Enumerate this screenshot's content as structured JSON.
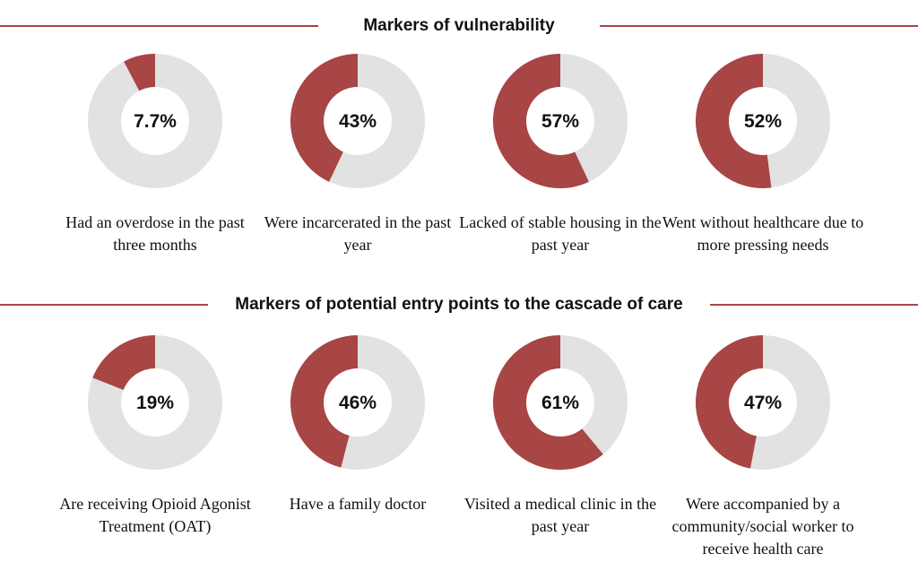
{
  "colors": {
    "accent": "#a84545",
    "track": "#e2e2e2",
    "hole": "#ffffff"
  },
  "chart_data": [
    {
      "type": "pie",
      "title": "Markers of vulnerability",
      "items": [
        {
          "value": 7.7,
          "label": "7.7%",
          "caption": "Had an overdose in the past three months"
        },
        {
          "value": 43,
          "label": "43%",
          "caption": "Were incarcerated in the past year"
        },
        {
          "value": 57,
          "label": "57%",
          "caption": "Lacked of stable housing in the past year"
        },
        {
          "value": 52,
          "label": "52%",
          "caption": "Went without healthcare due to more pressing needs"
        }
      ]
    },
    {
      "type": "pie",
      "title": "Markers of potential entry points to the cascade of care",
      "items": [
        {
          "value": 19,
          "label": "19%",
          "caption": "Are receiving Opioid Agonist Treatment (OAT)"
        },
        {
          "value": 46,
          "label": "46%",
          "caption": "Have a family doctor"
        },
        {
          "value": 61,
          "label": "61%",
          "caption": "Visited a medical clinic in the past year"
        },
        {
          "value": 47,
          "label": "47%",
          "caption": "Were accompanied by a community/social worker to receive health care"
        }
      ]
    }
  ]
}
